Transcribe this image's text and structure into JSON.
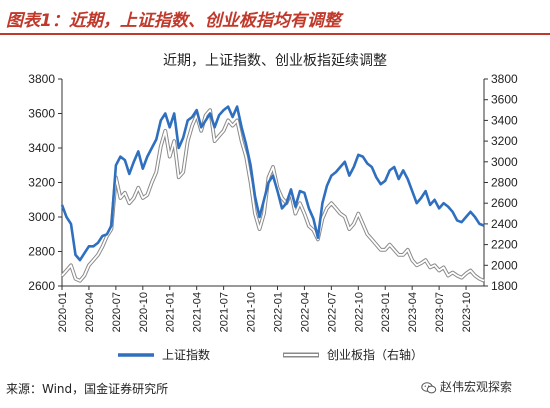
{
  "figure": {
    "title": "图表1：近期，上证指数、创业板指均有调整",
    "source": "来源：Wind，国金证券研究所",
    "watermark": "赵伟宏观探索",
    "watermark_icon": "wechat-icon",
    "accent_color": "#c0392b"
  },
  "chart_data": {
    "type": "line",
    "title": "近期，上证指数、创业板指延续调整",
    "x_ticks": [
      "2020-01",
      "2020-04",
      "2020-07",
      "2020-10",
      "2021-01",
      "2021-04",
      "2021-07",
      "2021-10",
      "2022-01",
      "2022-04",
      "2022-07",
      "2022-10",
      "2023-01",
      "2023-04",
      "2023-07",
      "2023-10"
    ],
    "x_range": [
      0,
      47
    ],
    "y_left": {
      "range": [
        2600,
        3800
      ],
      "ticks": [
        2600,
        2800,
        3000,
        3200,
        3400,
        3600,
        3800
      ]
    },
    "y_right": {
      "range": [
        1800,
        3800
      ],
      "ticks": [
        1800,
        2000,
        2200,
        2400,
        2600,
        2800,
        3000,
        3200,
        3400,
        3600,
        3800
      ]
    },
    "grid": false,
    "legend_position": "bottom",
    "series": [
      {
        "name": "上证指数",
        "axis": "left",
        "color": "#2f6fbf",
        "x": [
          0,
          0.5,
          1,
          1.5,
          2,
          2.5,
          3,
          3.5,
          4,
          4.5,
          5,
          5.5,
          6,
          6.5,
          7,
          7.5,
          8,
          8.5,
          9,
          9.5,
          10,
          10.5,
          11,
          11.5,
          12,
          12.5,
          13,
          13.5,
          14,
          14.5,
          15,
          15.5,
          16,
          16.5,
          17,
          17.5,
          18,
          18.5,
          19,
          19.5,
          20,
          20.5,
          21,
          21.5,
          22,
          22.5,
          23,
          23.5,
          24,
          24.5,
          25,
          25.5,
          26,
          26.5,
          27,
          27.5,
          28,
          28.5,
          29,
          29.5,
          30,
          30.5,
          31,
          31.5,
          32,
          32.5,
          33,
          33.5,
          34,
          34.5,
          35,
          35.5,
          36,
          36.5,
          37,
          37.5,
          38,
          38.5,
          39,
          39.5,
          40,
          40.5,
          41,
          41.5,
          42,
          42.5,
          43,
          43.5,
          44,
          44.5,
          45,
          45.5,
          46,
          46.5,
          47
        ],
        "values": [
          3070,
          3000,
          2960,
          2780,
          2750,
          2790,
          2830,
          2830,
          2850,
          2890,
          2900,
          2950,
          3300,
          3350,
          3330,
          3250,
          3320,
          3380,
          3280,
          3350,
          3400,
          3450,
          3560,
          3600,
          3520,
          3600,
          3400,
          3460,
          3560,
          3580,
          3620,
          3520,
          3560,
          3600,
          3520,
          3590,
          3620,
          3640,
          3580,
          3640,
          3520,
          3420,
          3300,
          3120,
          3000,
          3100,
          3200,
          3240,
          3150,
          3050,
          3080,
          3160,
          3060,
          3150,
          3140,
          3050,
          2990,
          2880,
          3080,
          3180,
          3240,
          3260,
          3290,
          3320,
          3240,
          3290,
          3360,
          3350,
          3310,
          3290,
          3230,
          3190,
          3210,
          3270,
          3290,
          3220,
          3270,
          3220,
          3150,
          3080,
          3110,
          3150,
          3070,
          3100,
          3050,
          3080,
          3060,
          3030,
          2980,
          2970,
          3000,
          3030,
          3000,
          2960,
          2950
        ]
      },
      {
        "name": "创业板指（右轴）",
        "axis": "right",
        "color": "#b8b8b8",
        "x": [
          0,
          0.5,
          1,
          1.5,
          2,
          2.5,
          3,
          3.5,
          4,
          4.5,
          5,
          5.5,
          6,
          6.5,
          7,
          7.5,
          8,
          8.5,
          9,
          9.5,
          10,
          10.5,
          11,
          11.5,
          12,
          12.5,
          13,
          13.5,
          14,
          14.5,
          15,
          15.5,
          16,
          16.5,
          17,
          17.5,
          18,
          18.5,
          19,
          19.5,
          20,
          20.5,
          21,
          21.5,
          22,
          22.5,
          23,
          23.5,
          24,
          24.5,
          25,
          25.5,
          26,
          26.5,
          27,
          27.5,
          28,
          28.5,
          29,
          29.5,
          30,
          30.5,
          31,
          31.5,
          32,
          32.5,
          33,
          33.5,
          34,
          34.5,
          35,
          35.5,
          36,
          36.5,
          37,
          37.5,
          38,
          38.5,
          39,
          39.5,
          40,
          40.5,
          41,
          41.5,
          42,
          42.5,
          43,
          43.5,
          44,
          44.5,
          45,
          45.5,
          46,
          46.5,
          47
        ],
        "values": [
          1900,
          1950,
          2000,
          1870,
          1850,
          1900,
          2000,
          2050,
          2100,
          2180,
          2280,
          2350,
          2850,
          2650,
          2700,
          2600,
          2650,
          2750,
          2650,
          2680,
          2800,
          2900,
          3150,
          3300,
          3050,
          3200,
          2850,
          2900,
          3200,
          3350,
          3450,
          3300,
          3450,
          3500,
          3200,
          3250,
          3300,
          3400,
          3350,
          3400,
          3200,
          3050,
          2800,
          2500,
          2350,
          2500,
          2850,
          2950,
          2750,
          2650,
          2600,
          2700,
          2500,
          2600,
          2500,
          2380,
          2340,
          2250,
          2450,
          2550,
          2600,
          2550,
          2500,
          2470,
          2350,
          2400,
          2500,
          2400,
          2300,
          2250,
          2200,
          2150,
          2150,
          2200,
          2150,
          2100,
          2100,
          2150,
          2050,
          2000,
          2020,
          2050,
          1980,
          2000,
          1950,
          1980,
          1900,
          1930,
          1900,
          1880,
          1920,
          1950,
          1900,
          1870,
          1850
        ]
      }
    ]
  }
}
